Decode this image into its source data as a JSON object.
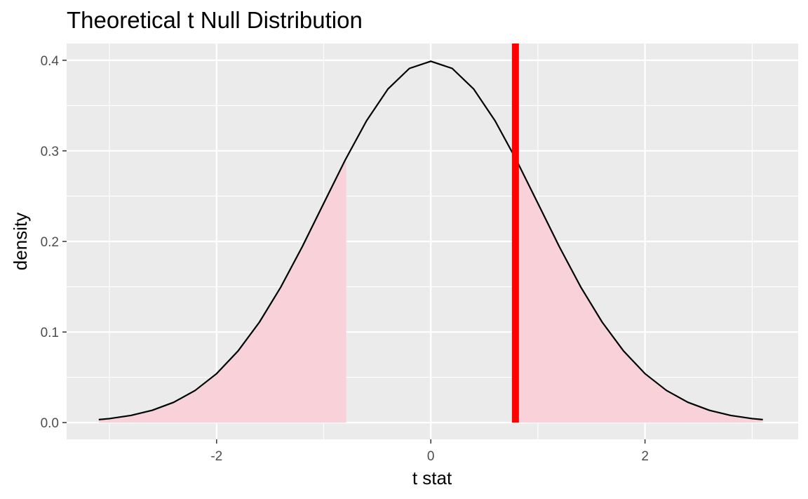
{
  "chart_data": {
    "type": "area",
    "title": "Theoretical t Null Distribution",
    "xlabel": "t stat",
    "ylabel": "density",
    "xlim": [
      -3.4,
      3.43
    ],
    "ylim": [
      -0.0185,
      0.4185
    ],
    "x_ticks": [
      -2,
      0,
      2
    ],
    "x_tick_labels": [
      "-2",
      "0",
      "2"
    ],
    "y_ticks": [
      0.0,
      0.1,
      0.2,
      0.3,
      0.4
    ],
    "y_tick_labels": [
      "0.0",
      "0.1",
      "0.2",
      "0.3",
      "0.4"
    ],
    "x_minor_ticks": [
      -3,
      -1,
      1,
      3
    ],
    "y_minor_ticks": [
      0.05,
      0.15,
      0.25,
      0.35
    ],
    "grid": true,
    "series": [
      {
        "type": "line",
        "x": [
          -3.1,
          -3.0,
          -2.8,
          -2.6,
          -2.4,
          -2.2,
          -2.0,
          -1.8,
          -1.6,
          -1.4,
          -1.2,
          -1.0,
          -0.8,
          -0.6,
          -0.4,
          -0.2,
          0.0,
          0.2,
          0.4,
          0.6,
          0.8,
          1.0,
          1.2,
          1.4,
          1.6,
          1.8,
          2.0,
          2.2,
          2.4,
          2.6,
          2.8,
          3.0,
          3.1
        ],
        "y": [
          0.0033,
          0.0044,
          0.0079,
          0.0136,
          0.0224,
          0.0355,
          0.054,
          0.079,
          0.1109,
          0.1497,
          0.1942,
          0.242,
          0.2897,
          0.3332,
          0.3683,
          0.391,
          0.3989,
          0.391,
          0.3683,
          0.3332,
          0.2897,
          0.242,
          0.1942,
          0.1497,
          0.1109,
          0.079,
          0.054,
          0.0355,
          0.0224,
          0.0136,
          0.0079,
          0.0044,
          0.0033
        ],
        "color": "#000000"
      }
    ],
    "shaded_regions": [
      {
        "from": -3.1,
        "to": -0.79,
        "color": "#f9d1d8"
      },
      {
        "from": 0.79,
        "to": 3.1,
        "color": "#f9d1d8"
      }
    ],
    "observed_stat": {
      "x": 0.79,
      "color": "#ff0000"
    }
  }
}
